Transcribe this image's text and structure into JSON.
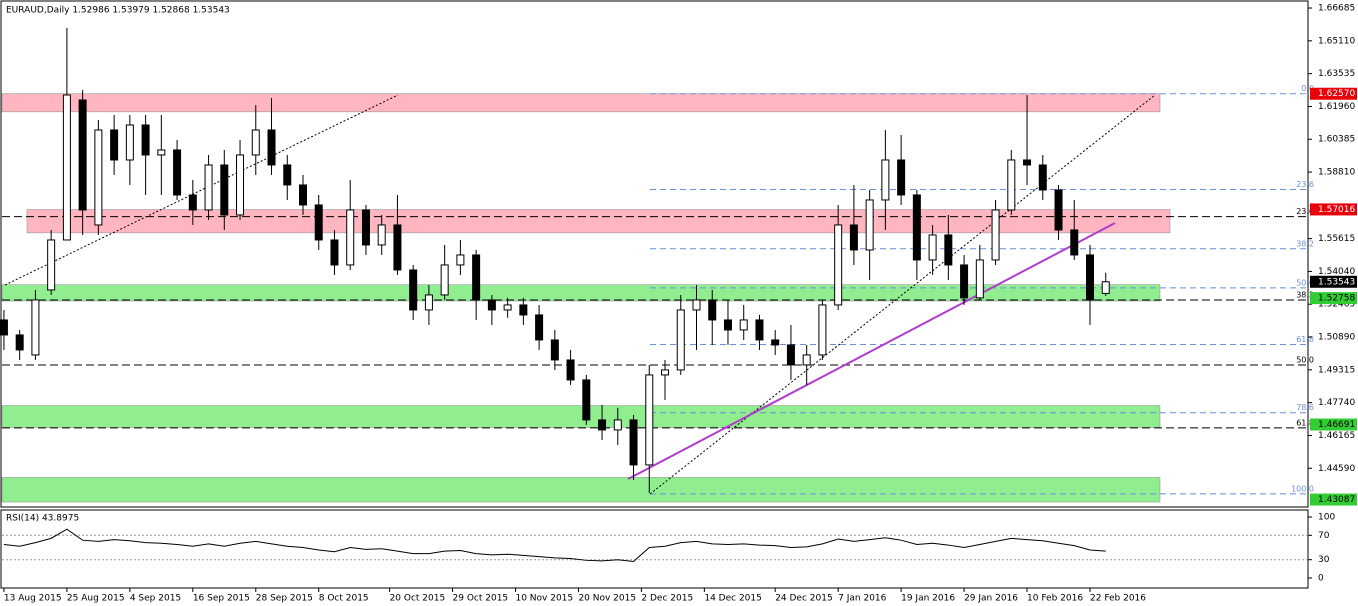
{
  "chart_data": [
    {
      "type": "candlestick",
      "title": "EURAUD,Daily  1.52986 1.53979 1.52868 1.53543",
      "x": [
        0,
        2,
        4,
        6,
        8,
        10,
        12,
        14,
        16,
        18,
        20,
        22,
        24,
        26,
        28,
        30,
        32,
        34,
        36,
        38,
        40,
        42,
        44,
        46,
        48,
        50,
        52,
        54,
        56,
        58,
        60,
        62,
        64,
        66,
        68,
        70,
        72,
        74,
        76,
        78,
        80,
        82,
        84,
        86,
        88,
        90,
        92,
        94,
        96,
        98,
        100,
        102,
        104,
        106,
        108,
        110,
        112,
        114,
        116,
        118,
        120,
        122,
        124,
        126,
        128,
        130,
        132,
        134,
        136,
        138,
        140
      ],
      "open": [
        1.5171,
        1.5099,
        1.5003,
        1.5315,
        1.5555,
        1.6227,
        1.5627,
        1.6083,
        1.5939,
        1.6107,
        1.5963,
        1.5987,
        1.5771,
        1.5699,
        1.5915,
        1.5675,
        1.5963,
        1.6083,
        1.5915,
        1.5819,
        1.5723,
        1.5555,
        1.5435,
        1.5699,
        1.5531,
        1.5627,
        1.5411,
        1.5219,
        1.5291,
        1.5435,
        1.5483,
        1.5267,
        1.5219,
        1.5243,
        1.5195,
        1.5075,
        1.4979,
        1.4883,
        1.4691,
        1.4643,
        1.4691,
        1.4475,
        1.4907,
        1.4931,
        1.5219,
        1.5267,
        1.5171,
        1.5123,
        1.5171,
        1.5075,
        1.5051,
        1.4955,
        1.5003,
        1.5243,
        1.5627,
        1.5507,
        1.5747,
        1.5939,
        1.5771,
        1.5459,
        1.5579,
        1.5435,
        1.5277,
        1.5459,
        1.5699,
        1.5939,
        1.5915,
        1.5795,
        1.5603,
        1.5483,
        1.52986
      ],
      "high": [
        1.5219,
        1.5123,
        1.5315,
        1.5603,
        1.6573,
        1.6275,
        1.6131,
        1.6155,
        1.6155,
        1.6155,
        1.6155,
        1.6035,
        1.5843,
        1.5963,
        1.5987,
        1.6035,
        1.6203,
        1.6237,
        1.5963,
        1.5867,
        1.5771,
        1.5603,
        1.5843,
        1.5723,
        1.5675,
        1.5771,
        1.5435,
        1.5339,
        1.5531,
        1.5555,
        1.5507,
        1.5291,
        1.5277,
        1.5277,
        1.5243,
        1.5123,
        1.5027,
        1.4907,
        1.4763,
        1.4749,
        1.4715,
        1.4955,
        1.4979,
        1.5291,
        1.5339,
        1.5315,
        1.5267,
        1.5243,
        1.5195,
        1.5123,
        1.5147,
        1.5051,
        1.5267,
        1.5723,
        1.5819,
        1.5795,
        1.6083,
        1.6059,
        1.5795,
        1.5627,
        1.5675,
        1.5483,
        1.5531,
        1.5747,
        1.5987,
        1.6251,
        1.5963,
        1.5819,
        1.5747,
        1.5531,
        1.53979
      ],
      "low": [
        1.5027,
        1.4979,
        1.4979,
        1.5291,
        1.5555,
        1.5579,
        1.5579,
        1.5867,
        1.5819,
        1.5771,
        1.5771,
        1.5747,
        1.5627,
        1.5651,
        1.5603,
        1.5651,
        1.5867,
        1.5867,
        1.5747,
        1.5675,
        1.5507,
        1.5387,
        1.5411,
        1.5483,
        1.5483,
        1.5387,
        1.5171,
        1.5147,
        1.5267,
        1.5387,
        1.5171,
        1.5147,
        1.5181,
        1.5147,
        1.5027,
        1.4931,
        1.4859,
        1.4667,
        1.4595,
        1.4571,
        1.4403,
        1.4341,
        1.4787,
        1.4907,
        1.5027,
        1.5051,
        1.5051,
        1.5075,
        1.5027,
        1.5003,
        1.4883,
        1.4859,
        1.4979,
        1.5219,
        1.5435,
        1.5363,
        1.5603,
        1.5723,
        1.5363,
        1.5387,
        1.5363,
        1.5243,
        1.5267,
        1.5435,
        1.5675,
        1.5819,
        1.5747,
        1.5555,
        1.5459,
        1.5147,
        1.52868
      ],
      "close": [
        1.5099,
        1.5027,
        1.5267,
        1.5555,
        1.6251,
        1.5699,
        1.6083,
        1.5939,
        1.6107,
        1.5963,
        1.5987,
        1.5771,
        1.5699,
        1.5915,
        1.5675,
        1.5963,
        1.6083,
        1.5915,
        1.5819,
        1.5723,
        1.5555,
        1.5435,
        1.5699,
        1.5531,
        1.5627,
        1.5411,
        1.5219,
        1.5291,
        1.5435,
        1.5483,
        1.5267,
        1.5219,
        1.5243,
        1.5195,
        1.5075,
        1.4979,
        1.4883,
        1.4691,
        1.4643,
        1.4691,
        1.4475,
        1.4907,
        1.4931,
        1.5219,
        1.5267,
        1.5171,
        1.5123,
        1.5171,
        1.5075,
        1.5051,
        1.4955,
        1.5003,
        1.5243,
        1.5627,
        1.5507,
        1.5747,
        1.5939,
        1.5771,
        1.5459,
        1.5579,
        1.5435,
        1.5277,
        1.5459,
        1.5699,
        1.5939,
        1.5915,
        1.5795,
        1.5603,
        1.5483,
        1.5267,
        1.53543
      ],
      "up_color": "#ffffff",
      "down_color": "#000000",
      "xlim": [
        -0.5,
        165.7
      ],
      "ylim": [
        1.4273,
        1.6707
      ],
      "xticks": [
        {
          "value": 0,
          "label": "13 Aug 2015"
        },
        {
          "value": 8,
          "label": "25 Aug 2015"
        },
        {
          "value": 16,
          "label": "4 Sep 2015"
        },
        {
          "value": 24,
          "label": "16 Sep 2015"
        },
        {
          "value": 32,
          "label": "28 Sep 2015"
        },
        {
          "value": 40,
          "label": "8 Oct 2015"
        },
        {
          "value": 49,
          "label": "20 Oct 2015"
        },
        {
          "value": 57,
          "label": "29 Oct 2015"
        },
        {
          "value": 65,
          "label": "10 Nov 2015"
        },
        {
          "value": 73,
          "label": "20 Nov 2015"
        },
        {
          "value": 81,
          "label": "2 Dec 2015"
        },
        {
          "value": 89,
          "label": "14 Dec 2015"
        },
        {
          "value": 98,
          "label": "24 Dec 2015"
        },
        {
          "value": 106,
          "label": "7 Jan 2016"
        },
        {
          "value": 114,
          "label": "19 Jan 2016"
        },
        {
          "value": 122,
          "label": "29 Jan 2016"
        },
        {
          "value": 130,
          "label": "10 Feb 2016"
        },
        {
          "value": 138,
          "label": "22 Feb 2016"
        }
      ],
      "yticks": [
        {
          "value": 1.66685,
          "label": "1.66685"
        },
        {
          "value": 1.6511,
          "label": "1.65110"
        },
        {
          "value": 1.63535,
          "label": "1.63535"
        },
        {
          "value": 1.6196,
          "label": "1.61960"
        },
        {
          "value": 1.60385,
          "label": "1.60385"
        },
        {
          "value": 1.5881,
          "label": "1.58810"
        },
        {
          "value": 1.55615,
          "label": "1.55615"
        },
        {
          "value": 1.5404,
          "label": "1.54040"
        },
        {
          "value": 1.52465,
          "label": "1.52465"
        },
        {
          "value": 1.5089,
          "label": "1.50890"
        },
        {
          "value": 1.49315,
          "label": "1.49315"
        },
        {
          "value": 1.4774,
          "label": "1.47740"
        },
        {
          "value": 1.46165,
          "label": "1.46165"
        },
        {
          "value": 1.4459,
          "label": "1.44590"
        }
      ],
      "zones": [
        {
          "from": 1.6257,
          "to": 1.617,
          "color": "#ffb6c1"
        },
        {
          "from": 1.5701,
          "to": 1.5589,
          "color": "#ffb6c1"
        },
        {
          "from": 1.534,
          "to": 1.5262,
          "color": "#90ee90"
        },
        {
          "from": 1.476,
          "to": 1.4655,
          "color": "#90ee90"
        },
        {
          "from": 1.4415,
          "to": 1.4297,
          "color": "#90ee90"
        }
      ],
      "fib_blue": [
        {
          "value": 1.6257,
          "label": "0.0"
        },
        {
          "value": 1.57972,
          "label": "23.6"
        },
        {
          "value": 1.55128,
          "label": "38.2"
        },
        {
          "value": 1.5325,
          "label": "50.0"
        },
        {
          "value": 1.5053,
          "label": "61.8"
        },
        {
          "value": 1.47257,
          "label": "78.6"
        },
        {
          "value": 1.4336,
          "label": "100.0"
        }
      ],
      "fib_black": [
        {
          "value": 1.5667,
          "label": "23.6"
        },
        {
          "value": 1.5267,
          "label": "38.2"
        },
        {
          "value": 1.4955,
          "label": "50.0"
        },
        {
          "value": 1.4653,
          "label": "61.8"
        }
      ],
      "price_labels": [
        {
          "value": 1.6257,
          "label": "1.62570",
          "color": "#e8000b",
          "text_color": "#ffffff"
        },
        {
          "value": 1.57016,
          "label": "1.57016",
          "color": "#e8000b",
          "text_color": "#ffffff"
        },
        {
          "value": 1.53543,
          "label": "1.53543",
          "color": "#000000",
          "text_color": "#ffffff"
        },
        {
          "value": 1.52758,
          "label": "1.52758",
          "color": "#32cd32",
          "text_color": "#000000"
        },
        {
          "value": 1.46691,
          "label": "1.46691",
          "color": "#32cd32",
          "text_color": "#000000"
        },
        {
          "value": 1.43087,
          "label": "1.43087",
          "color": "#32cd32",
          "text_color": "#000000"
        }
      ]
    },
    {
      "type": "line",
      "title": "RSI(14) 43.8975",
      "values": [
        55,
        52,
        58,
        65,
        80,
        62,
        60,
        63,
        61,
        58,
        57,
        55,
        52,
        56,
        52,
        57,
        60,
        56,
        52,
        50,
        46,
        43,
        50,
        47,
        48,
        44,
        40,
        40,
        44,
        45,
        40,
        38,
        39,
        37,
        35,
        33,
        32,
        29,
        28,
        30,
        27,
        50,
        52,
        58,
        60,
        56,
        55,
        56,
        54,
        53,
        50,
        51,
        56,
        64,
        60,
        63,
        66,
        62,
        55,
        57,
        54,
        50,
        55,
        60,
        65,
        63,
        61,
        57,
        53,
        46,
        44
      ],
      "color": "#000000",
      "ylim": [
        -16.4,
        111.5
      ],
      "yticks": [
        0,
        30,
        70,
        100
      ],
      "levels": [
        30,
        70
      ]
    }
  ]
}
